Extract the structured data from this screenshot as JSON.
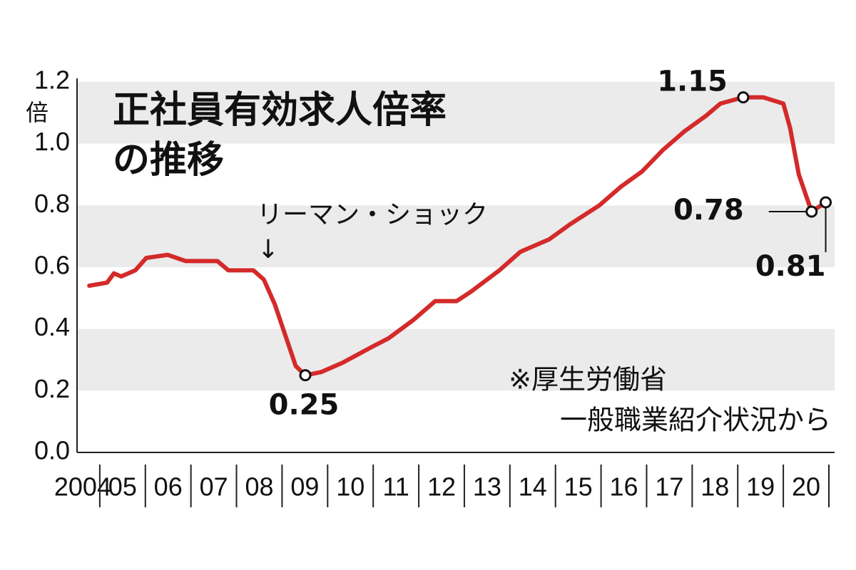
{
  "chart_data": {
    "type": "line",
    "title_lines": [
      "正社員有効求人倍率",
      "の推移"
    ],
    "y_unit": "倍",
    "annotation": {
      "text": "リーマン・ショック",
      "arrow": "↓"
    },
    "source_lines": [
      "※厚生労働省",
      "一般職業紹介状況から"
    ],
    "x": [
      2004.77,
      2005.16,
      2005.31,
      2005.47,
      2005.78,
      2006.02,
      2006.49,
      2006.88,
      2007.35,
      2007.58,
      2007.82,
      2008.37,
      2008.6,
      2008.84,
      2009.07,
      2009.3,
      2009.51,
      2009.85,
      2010.32,
      2010.95,
      2011.34,
      2011.89,
      2012.36,
      2012.83,
      2013.14,
      2013.77,
      2014.23,
      2014.86,
      2015.33,
      2015.96,
      2016.43,
      2016.9,
      2017.36,
      2017.83,
      2018.3,
      2018.62,
      2019.12,
      2019.56,
      2020.0,
      2020.15,
      2020.34,
      2020.62,
      2020.93
    ],
    "series": [
      {
        "color": "#d42a2a",
        "values": [
          0.54,
          0.55,
          0.58,
          0.57,
          0.59,
          0.63,
          0.64,
          0.62,
          0.62,
          0.62,
          0.59,
          0.59,
          0.56,
          0.48,
          0.38,
          0.28,
          0.25,
          0.26,
          0.29,
          0.34,
          0.37,
          0.43,
          0.49,
          0.49,
          0.52,
          0.59,
          0.65,
          0.69,
          0.74,
          0.8,
          0.86,
          0.91,
          0.98,
          1.04,
          1.09,
          1.13,
          1.15,
          1.15,
          1.13,
          1.05,
          0.9,
          0.78,
          0.81
        ]
      }
    ],
    "markers": [
      {
        "x": 2009.51,
        "y": 0.25
      },
      {
        "x": 2019.12,
        "y": 1.15
      },
      {
        "x": 2020.62,
        "y": 0.78
      },
      {
        "x": 2020.93,
        "y": 0.81
      }
    ],
    "xlim": [
      2004,
      2021
    ],
    "xticks": [
      {
        "value": 2004,
        "label": "2004"
      },
      {
        "value": 2005,
        "label": "05"
      },
      {
        "value": 2006,
        "label": "06"
      },
      {
        "value": 2007,
        "label": "07"
      },
      {
        "value": 2008,
        "label": "08"
      },
      {
        "value": 2009,
        "label": "09"
      },
      {
        "value": 2010,
        "label": "10"
      },
      {
        "value": 2011,
        "label": "11"
      },
      {
        "value": 2012,
        "label": "12"
      },
      {
        "value": 2013,
        "label": "13"
      },
      {
        "value": 2014,
        "label": "14"
      },
      {
        "value": 2015,
        "label": "15"
      },
      {
        "value": 2016,
        "label": "16"
      },
      {
        "value": 2017,
        "label": "17"
      },
      {
        "value": 2018,
        "label": "18"
      },
      {
        "value": 2019,
        "label": "19"
      },
      {
        "value": 2020,
        "label": "20"
      }
    ],
    "ylim": [
      0,
      1.2
    ],
    "yticks": [
      {
        "value": 0,
        "label": "0.0"
      },
      0.2,
      0.4,
      0.6,
      0.8,
      {
        "value": 1,
        "label": "1.0"
      },
      1.2
    ],
    "band_color": "#ebebeb"
  }
}
